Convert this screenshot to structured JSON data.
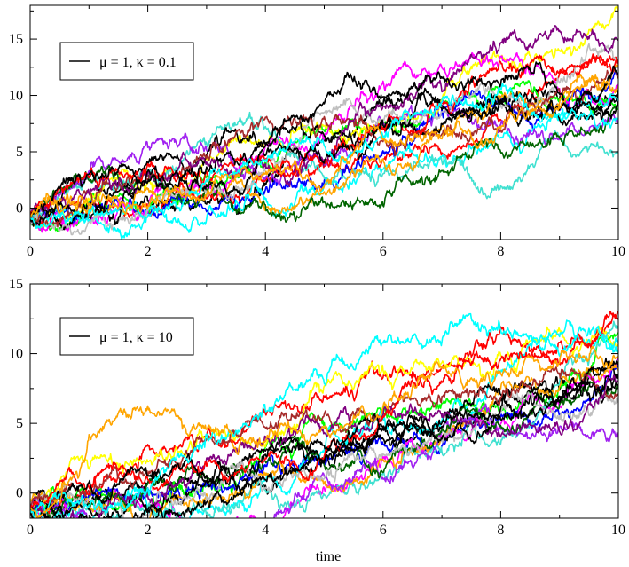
{
  "figure": {
    "xlabel": "time"
  },
  "chart_data": [
    {
      "type": "line",
      "legend": {
        "label": "μ = 1, κ = 0.1",
        "color": "#000000",
        "placement": "top-left"
      },
      "xlim": [
        0,
        10
      ],
      "ylim": [
        -2.8,
        18
      ],
      "x_ticks": [
        0,
        2,
        4,
        6,
        8,
        10
      ],
      "y_ticks": [
        0,
        5,
        10,
        15
      ],
      "grid": false,
      "series_colors": [
        "#000000",
        "#ff0000",
        "#00ff00",
        "#0000ff",
        "#ffff00",
        "#ff00ff",
        "#00ffff",
        "#40e0d0",
        "#ffa500",
        "#a020f0",
        "#006400",
        "#000000",
        "#bebebe",
        "#a52a2a",
        "#800080",
        "#ff0000",
        "#000000",
        "#000000",
        "#00ffff",
        "#ffa500"
      ],
      "series_endpoints": [
        {
          "x": 0,
          "y": -1.0
        },
        {
          "x": 10,
          "y": 17.5,
          "color_index": 4
        },
        {
          "x": 10,
          "y": 15.0,
          "color_index": 14
        },
        {
          "x": 10,
          "y": 5.0,
          "color_index": 7
        }
      ],
      "approx_final_values": [
        10.5,
        13.2,
        8.8,
        12.0,
        17.5,
        11.0,
        9.8,
        5.0,
        12.5,
        7.5,
        9.0,
        10.2,
        12.8,
        11.5,
        15.0,
        13.0,
        9.5,
        11.8,
        8.0,
        10.8
      ]
    },
    {
      "type": "line",
      "legend": {
        "label": "μ = 1, κ = 10",
        "color": "#000000",
        "placement": "top-left"
      },
      "xlim": [
        0,
        10
      ],
      "ylim": [
        -1.8,
        15
      ],
      "x_ticks": [
        0,
        2,
        4,
        6,
        8,
        10
      ],
      "y_ticks": [
        0,
        5,
        10,
        15
      ],
      "grid": false,
      "series_colors": [
        "#000000",
        "#ff0000",
        "#00ff00",
        "#0000ff",
        "#ffff00",
        "#ff00ff",
        "#00ffff",
        "#40e0d0",
        "#ffa500",
        "#a020f0",
        "#006400",
        "#000000",
        "#bebebe",
        "#a52a2a",
        "#800080",
        "#ff0000",
        "#000000",
        "#000000",
        "#00ffff",
        "#ffa500"
      ],
      "series_endpoints": [
        {
          "x": 0,
          "y": -1.0
        },
        {
          "x": 10,
          "y": 13.0,
          "color_index": 1
        },
        {
          "x": 10,
          "y": 4.0,
          "color_index": 9
        }
      ],
      "approx_final_values": [
        8.5,
        13.0,
        11.5,
        9.0,
        10.5,
        9.5,
        11.0,
        12.0,
        8.8,
        4.0,
        7.5,
        8.2,
        6.5,
        7.0,
        8.0,
        12.5,
        9.2,
        7.8,
        10.0,
        9.8
      ]
    }
  ]
}
